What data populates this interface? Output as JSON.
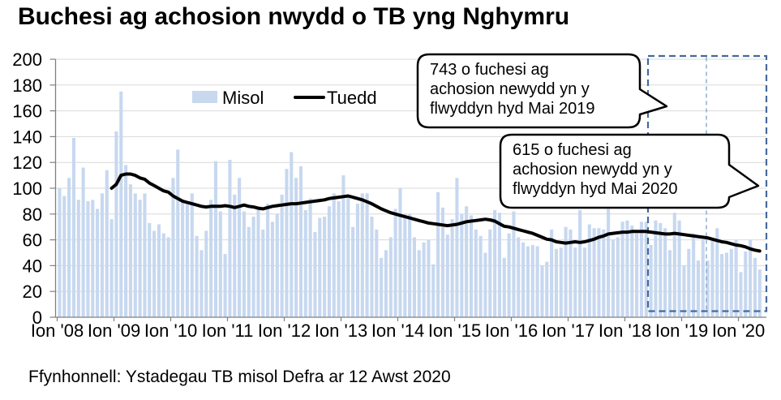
{
  "title": "Buchesi ag achosion nwydd o TB yng Nghymru",
  "source": "Ffynhonnell: Ystadegau TB misol Defra ar 12 Awst 2020",
  "legend": {
    "monthly": "Misol",
    "trend": "Tuedd"
  },
  "callouts": [
    {
      "value": 743,
      "line1": "743 o fuchesi ag",
      "line2": "achosion newydd yn y",
      "line3": "flwyddyn hyd Mai 2019"
    },
    {
      "value": 615,
      "line1": "615 o fuchesi ag",
      "line2": "achosion newydd yn y",
      "line3": "flwyddyn hyd Mai 2020"
    }
  ],
  "chart_data": {
    "type": "bar",
    "title": "Buchesi ag achosion nwydd o TB yng Nghymru",
    "xlabel": "",
    "ylabel": "",
    "ylim": [
      0,
      200
    ],
    "y_tick_step": 20,
    "grid": true,
    "legend_position": "top-center",
    "x_tick_labels": [
      "Ion '08",
      "Ion '09",
      "Ion '10",
      "Ion '11",
      "Ion '12",
      "Ion '13",
      "Ion '14",
      "Ion '15",
      "Ion '16",
      "Ion '17",
      "Ion '18",
      "Ion '19",
      "Ion '20"
    ],
    "series": [
      {
        "name": "Misol",
        "type": "bar",
        "start": "2008-01",
        "start_index": 0,
        "values": [
          100,
          94,
          108,
          139,
          91,
          116,
          90,
          91,
          84,
          96,
          114,
          76,
          144,
          175,
          118,
          103,
          96,
          91,
          96,
          73,
          67,
          72,
          65,
          62,
          108,
          130,
          91,
          88,
          96,
          63,
          52,
          67,
          91,
          121,
          82,
          49,
          122,
          95,
          108,
          82,
          70,
          78,
          84,
          68,
          88,
          74,
          80,
          95,
          115,
          128,
          108,
          117,
          83,
          92,
          66,
          77,
          78,
          86,
          96,
          90,
          110,
          94,
          70,
          88,
          96,
          96,
          78,
          68,
          46,
          52,
          62,
          84,
          100,
          80,
          80,
          62,
          52,
          58,
          60,
          41,
          97,
          85,
          64,
          76,
          108,
          80,
          86,
          79,
          68,
          63,
          50,
          68,
          83,
          81,
          46,
          65,
          82,
          62,
          58,
          55,
          56,
          55,
          40,
          43,
          68,
          53,
          54,
          70,
          68,
          54,
          83,
          54,
          72,
          69,
          69,
          68,
          84,
          60,
          62,
          74,
          75,
          71,
          65,
          74,
          74,
          56,
          75,
          73,
          69,
          52,
          81,
          75,
          40,
          53,
          65,
          44,
          60,
          44,
          61,
          69,
          49,
          50,
          53,
          60,
          35,
          51,
          60,
          46,
          37
        ]
      },
      {
        "name": "Tuedd",
        "type": "line",
        "start": "2008-12",
        "start_index": 11,
        "values": [
          100,
          103,
          110,
          111,
          111,
          110,
          108,
          107,
          104,
          102,
          100,
          98,
          97,
          94,
          92,
          90,
          89,
          88,
          87,
          86,
          85.5,
          86,
          86,
          86,
          86.5,
          86,
          85,
          86,
          87,
          86,
          85.5,
          84.5,
          84,
          85,
          86,
          86.5,
          87,
          87.5,
          88,
          88,
          88.5,
          89,
          89.5,
          90,
          90.5,
          91,
          92,
          92.5,
          93,
          93.5,
          94,
          93,
          92,
          91,
          89.5,
          88,
          86,
          84,
          82.5,
          81,
          80,
          79,
          78,
          77,
          76,
          75,
          74,
          73,
          72.5,
          72,
          71.5,
          71,
          71.5,
          72,
          73,
          74,
          74.5,
          75,
          75.5,
          76,
          75.5,
          74.5,
          72.5,
          70.5,
          70,
          69,
          68,
          67,
          66,
          65,
          63.5,
          62,
          60.5,
          60,
          58.5,
          58,
          57.5,
          58,
          58.5,
          58,
          58.5,
          59.5,
          60.5,
          62,
          63,
          64.5,
          65,
          65.5,
          66,
          66,
          66.5,
          66.5,
          66.5,
          66.5,
          66,
          65.5,
          65,
          64.5,
          64.5,
          65,
          64.5,
          64,
          63.5,
          63,
          62.5,
          62,
          61.5,
          60.5,
          59.5,
          58.5,
          58,
          57,
          56,
          55.5,
          54.5,
          53,
          52,
          51.3
        ]
      }
    ],
    "highlight_window": {
      "from": "2018-06",
      "divider": "2019-06",
      "to": "2020-05"
    },
    "annotations": [
      {
        "value": 743,
        "text": "743 o fuchesi ag achosion newydd yn y flwyddyn hyd Mai 2019",
        "window": "2018-06..2019-05"
      },
      {
        "value": 615,
        "text": "615 o fuchesi ag achosion newydd yn y flwyddyn hyd Mai 2020",
        "window": "2019-06..2020-05"
      }
    ],
    "colors": {
      "bar": "#c7d8ef",
      "trend": "#000000",
      "grid": "#d9d9d9",
      "axis": "#808080",
      "highlight_box": "#44699d",
      "highlight_divider": "#7da0cc",
      "text": "#000000"
    }
  }
}
